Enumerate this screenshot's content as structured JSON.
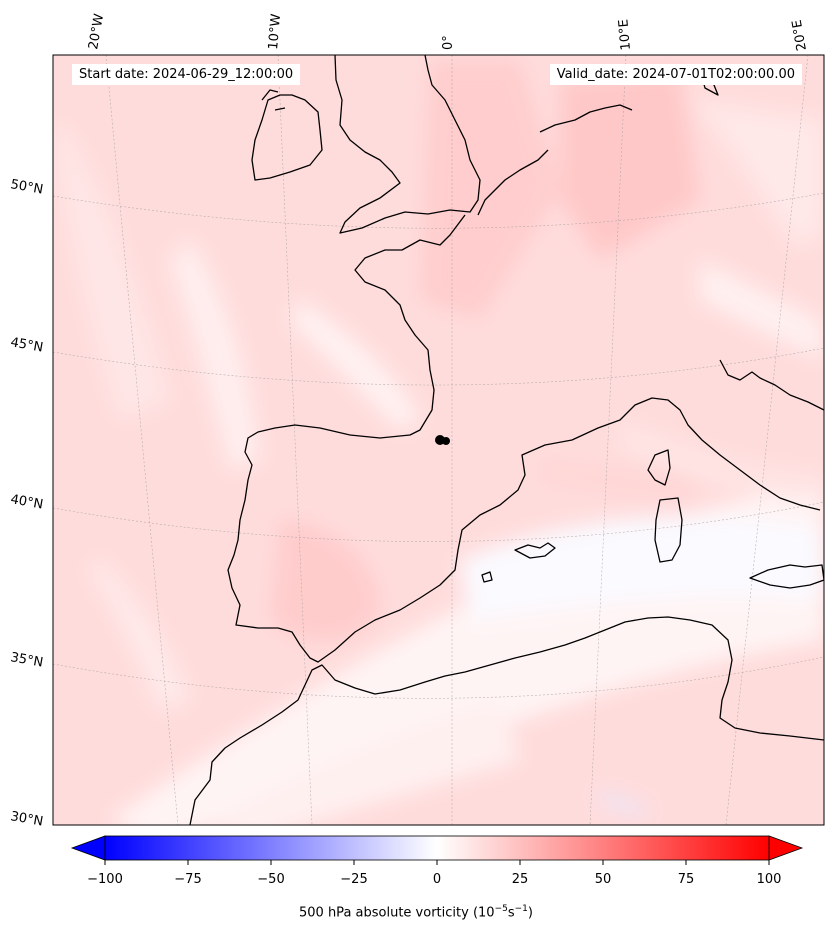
{
  "map": {
    "start_date": "Start date: 2024-06-29_12:00:00",
    "valid_date": "Valid_date: 2024-07-01T02:00:00.00",
    "longitude_labels": [
      "20°W",
      "10°W",
      "0°",
      "10°E",
      "20°E"
    ],
    "latitude_labels": [
      "50°N",
      "45°N",
      "40°N",
      "35°N",
      "30°N"
    ],
    "field": "500 hPa absolute vorticity"
  },
  "colorbar": {
    "label_prefix": "500 hPa absolute vorticity (10",
    "label_exp1": "−5",
    "label_mid": "s",
    "label_exp2": "−1",
    "label_suffix": ")",
    "ticks": [
      "−100",
      "−75",
      "−50",
      "−25",
      "0",
      "25",
      "50",
      "75",
      "100"
    ],
    "min": -100,
    "max": 100,
    "low_color": "#0000ff",
    "mid_color": "#ffffff",
    "high_color": "#ff0000"
  }
}
